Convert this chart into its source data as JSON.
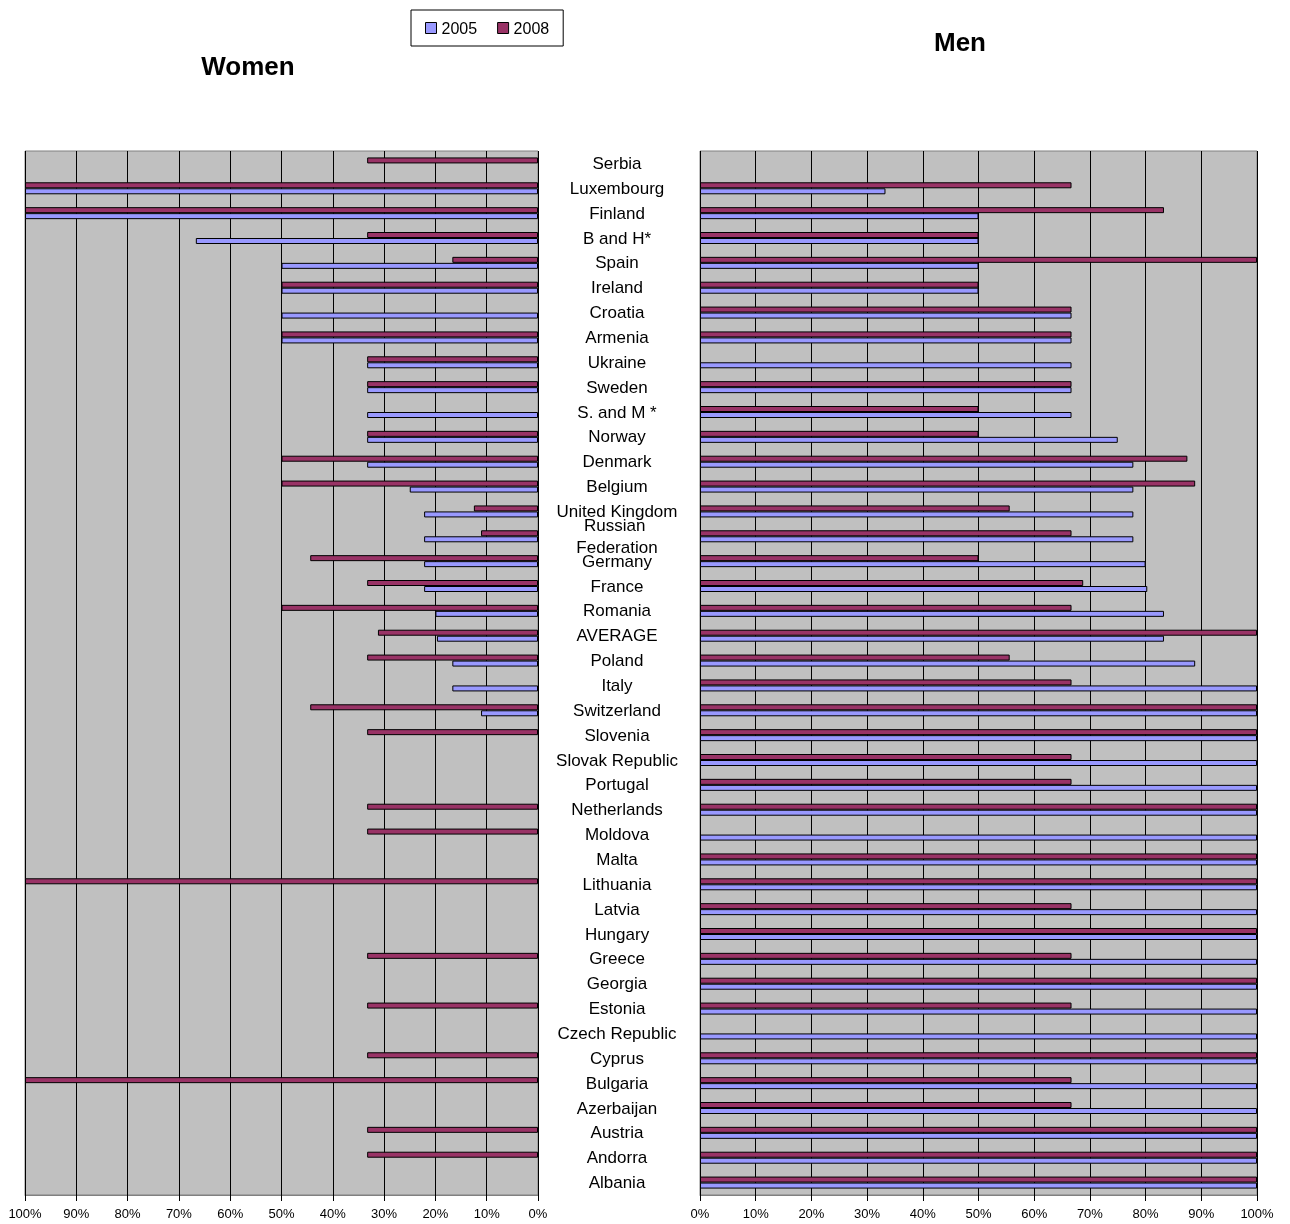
{
  "chart_data": [
    {
      "type": "bar",
      "title": "Women",
      "orientation": "horizontal",
      "grid": "x",
      "legend": "top right",
      "categories": [
        "Serbia",
        "Luxembourg",
        "Finland",
        "B and H*",
        "Spain",
        "Ireland",
        "Croatia",
        "Armenia",
        "Ukraine",
        "Sweden",
        "S. and M *",
        "Norway",
        "Denmark",
        "Belgium",
        "United Kingdom",
        "Russian Federation",
        "Germany",
        "France",
        "Romania",
        "AVERAGE",
        "Poland",
        "Italy",
        "Switzerland",
        "Slovenia",
        "Slovak Republic",
        "Portugal",
        "Netherlands",
        "Moldova",
        "Malta",
        "Lithuania",
        "Latvia",
        "Hungary",
        "Greece",
        "Georgia",
        "Estonia",
        "Czech Republic",
        "Cyprus",
        "Bulgaria",
        "Azerbaijan",
        "Austria",
        "Andorra",
        "Albania"
      ],
      "xlim": [
        100,
        0
      ],
      "xticks": [
        {
          "value": 100,
          "label": "100%"
        },
        {
          "value": 90,
          "label": "90%"
        },
        {
          "value": 80,
          "label": "80%"
        },
        {
          "value": 70,
          "label": "70%"
        },
        {
          "value": 60,
          "label": "60%"
        },
        {
          "value": 50,
          "label": "50%"
        },
        {
          "value": 40,
          "label": "40%"
        },
        {
          "value": 30,
          "label": "30%"
        },
        {
          "value": 20,
          "label": "20%"
        },
        {
          "value": 10,
          "label": "10%"
        },
        {
          "value": 0,
          "label": "0%"
        }
      ],
      "series": [
        {
          "name": "2005",
          "color": "#9999ff",
          "values": [
            null,
            100,
            100,
            66.7,
            50,
            50,
            50,
            50,
            33.3,
            33.3,
            33.3,
            33.3,
            33.3,
            25,
            22.2,
            22.2,
            22.2,
            22.2,
            20,
            19.7,
            16.7,
            16.7,
            11.1,
            null,
            null,
            null,
            null,
            null,
            null,
            null,
            null,
            null,
            null,
            null,
            null,
            null,
            null,
            null,
            null,
            null,
            null,
            null
          ]
        },
        {
          "name": "2008",
          "color": "#993366",
          "values": [
            33.3,
            100,
            100,
            33.3,
            16.7,
            50,
            null,
            50,
            33.3,
            33.3,
            null,
            33.3,
            50,
            50,
            12.5,
            11.1,
            44.4,
            33.3,
            50,
            31.2,
            33.3,
            null,
            44.4,
            33.3,
            null,
            null,
            33.3,
            33.3,
            null,
            100,
            null,
            null,
            33.3,
            null,
            33.3,
            null,
            33.3,
            100,
            null,
            33.3,
            33.3,
            null
          ]
        }
      ]
    },
    {
      "type": "bar",
      "title": "Men",
      "orientation": "horizontal",
      "grid": "x",
      "tick_labels": "x",
      "categories": [
        "Serbia",
        "Luxembourg",
        "Finland",
        "B and H*",
        "Spain",
        "Ireland",
        "Croatia",
        "Armenia",
        "Ukraine",
        "Sweden",
        "S. and M *",
        "Norway",
        "Denmark",
        "Belgium",
        "United Kingdom",
        "Russian Federation",
        "Germany",
        "France",
        "Romania",
        "AVERAGE",
        "Poland",
        "Italy",
        "Switzerland",
        "Slovenia",
        "Slovak Republic",
        "Portugal",
        "Netherlands",
        "Moldova",
        "Malta",
        "Lithuania",
        "Latvia",
        "Hungary",
        "Greece",
        "Georgia",
        "Estonia",
        "Czech Republic",
        "Cyprus",
        "Bulgaria",
        "Azerbaijan",
        "Austria",
        "Andorra",
        "Albania"
      ],
      "xlim": [
        0,
        100
      ],
      "xticks": [
        {
          "value": 0,
          "label": "0%"
        },
        {
          "value": 10,
          "label": "10%"
        },
        {
          "value": 20,
          "label": "20%"
        },
        {
          "value": 30,
          "label": "30%"
        },
        {
          "value": 40,
          "label": "40%"
        },
        {
          "value": 50,
          "label": "50%"
        },
        {
          "value": 60,
          "label": "60%"
        },
        {
          "value": 70,
          "label": "70%"
        },
        {
          "value": 80,
          "label": "80%"
        },
        {
          "value": 90,
          "label": "90%"
        },
        {
          "value": 100,
          "label": "100%"
        }
      ],
      "series": [
        {
          "color": "#9999ff",
          "values": [
            null,
            33.3,
            50,
            50,
            50,
            50,
            66.7,
            66.7,
            66.7,
            66.7,
            66.7,
            75,
            77.8,
            77.8,
            77.8,
            77.8,
            80,
            80.3,
            83.3,
            83.3,
            88.9,
            100,
            100,
            100,
            100,
            100,
            100,
            100,
            100,
            100,
            100,
            100,
            100,
            100,
            100,
            100,
            100,
            100,
            100,
            100,
            100,
            100
          ]
        },
        {
          "color": "#993366",
          "values": [
            null,
            66.7,
            83.3,
            50,
            100,
            50,
            66.7,
            66.7,
            null,
            66.7,
            50,
            50,
            87.5,
            88.9,
            55.6,
            66.7,
            50,
            68.8,
            66.7,
            100,
            55.6,
            66.7,
            100,
            100,
            66.7,
            66.7,
            100,
            null,
            100,
            100,
            66.7,
            100,
            66.7,
            100,
            66.7,
            null,
            100,
            66.7,
            66.7,
            100,
            100,
            100
          ]
        }
      ]
    }
  ]
}
